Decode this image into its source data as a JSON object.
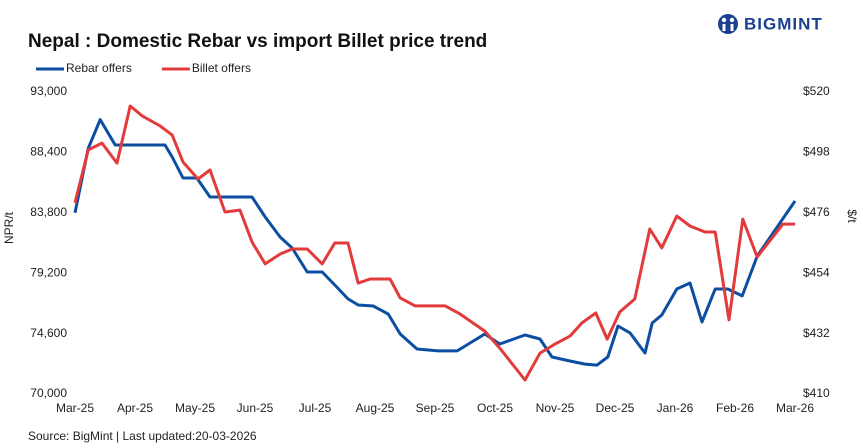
{
  "chart_data": {
    "type": "line",
    "title": "Nepal : Domestic Rebar vs import Billet price trend",
    "brand": "BIGMINT",
    "source": "Source: BigMint | Last updated:20-03-2026",
    "ylabel": "NPR/t",
    "y2label": "$/t",
    "xlim": [
      0,
      12
    ],
    "xticks": [
      {
        "value": 0,
        "label": "Mar-25"
      },
      {
        "value": 1,
        "label": "Apr-25"
      },
      {
        "value": 2,
        "label": "May-25"
      },
      {
        "value": 3,
        "label": "Jun-25"
      },
      {
        "value": 4,
        "label": "Jul-25"
      },
      {
        "value": 5,
        "label": "Aug-25"
      },
      {
        "value": 6,
        "label": "Sep-25"
      },
      {
        "value": 7,
        "label": "Oct-25"
      },
      {
        "value": 8,
        "label": "Nov-25"
      },
      {
        "value": 9,
        "label": "Dec-25"
      },
      {
        "value": 10,
        "label": "Jan-26"
      },
      {
        "value": 11,
        "label": "Feb-26"
      },
      {
        "value": 12,
        "label": "Mar-26"
      }
    ],
    "ylim": [
      70000,
      93000
    ],
    "yticks": [
      {
        "value": 70000,
        "label": "70,000"
      },
      {
        "value": 74600,
        "label": "74,600"
      },
      {
        "value": 79200,
        "label": "79,200"
      },
      {
        "value": 83800,
        "label": "83,800"
      },
      {
        "value": 88400,
        "label": "88,400"
      },
      {
        "value": 93000,
        "label": "93,000"
      }
    ],
    "y2lim": [
      410,
      520
    ],
    "y2ticks": [
      {
        "value": 410,
        "label": "$410"
      },
      {
        "value": 432,
        "label": "$432"
      },
      {
        "value": 454,
        "label": "$454"
      },
      {
        "value": 476,
        "label": "$476"
      },
      {
        "value": 498,
        "label": "$498"
      },
      {
        "value": 520,
        "label": "$520"
      }
    ],
    "series": [
      {
        "name": "Rebar offers",
        "color": "#0b4ea2",
        "x": [
          0,
          0.22,
          0.42,
          0.67,
          0.83,
          1.08,
          1.33,
          1.5,
          1.62,
          1.8,
          2.03,
          2.25,
          2.5,
          2.75,
          2.95,
          3.17,
          3.42,
          3.62,
          3.87,
          4.12,
          4.33,
          4.55,
          4.72,
          4.97,
          5.22,
          5.42,
          5.7,
          6.05,
          6.37,
          6.83,
          7.08,
          7.5,
          7.75,
          7.95,
          8.25,
          8.5,
          8.7,
          8.88,
          9.05,
          9.25,
          9.5,
          9.62,
          9.78,
          10.03,
          10.25,
          10.45,
          10.67,
          10.88,
          11.12,
          11.37,
          12
        ],
        "values": [
          83800,
          88700,
          90900,
          88960,
          88960,
          88960,
          88960,
          88960,
          88050,
          86450,
          86450,
          85000,
          85000,
          85000,
          85000,
          83480,
          81950,
          81120,
          79290,
          79290,
          78300,
          77240,
          76780,
          76700,
          76090,
          74570,
          73430,
          73280,
          73280,
          74570,
          73810,
          74490,
          74190,
          72820,
          72510,
          72280,
          72200,
          72820,
          75180,
          74650,
          73120,
          75410,
          76020,
          78000,
          78450,
          75490,
          78000,
          78000,
          77470,
          80500,
          84700
        ]
      },
      {
        "name": "Billet offers",
        "color": "#e33b3b",
        "axis": "y2",
        "x": [
          0,
          0.22,
          0.45,
          0.7,
          0.92,
          1.12,
          1.42,
          1.62,
          1.8,
          2.05,
          2.25,
          2.5,
          2.75,
          2.95,
          3.17,
          3.42,
          3.62,
          3.87,
          4.12,
          4.33,
          4.55,
          4.72,
          4.92,
          5.25,
          5.42,
          5.67,
          6.17,
          6.42,
          6.83,
          7.08,
          7.5,
          7.75,
          7.97,
          8.25,
          8.45,
          8.68,
          8.87,
          9.08,
          9.33,
          9.58,
          9.78,
          10.03,
          10.25,
          10.5,
          10.67,
          10.9,
          11.13,
          11.37,
          11.8,
          12
        ],
        "values": [
          479.6,
          498.9,
          501.4,
          494.1,
          514.9,
          511.3,
          507.6,
          504.3,
          494.5,
          488.3,
          491.6,
          476.3,
          477,
          465.4,
          457.4,
          461,
          462.8,
          462.8,
          457.4,
          465,
          465,
          450.4,
          451.9,
          451.9,
          445,
          442.1,
          442.1,
          439.1,
          432.9,
          426.7,
          415.1,
          424.9,
          427.8,
          431.1,
          435.9,
          439.5,
          430,
          439.9,
          444.6,
          470.1,
          463.2,
          474.8,
          471.2,
          469,
          469,
          437,
          473.7,
          459.9,
          471.9,
          471.9
        ]
      }
    ]
  }
}
